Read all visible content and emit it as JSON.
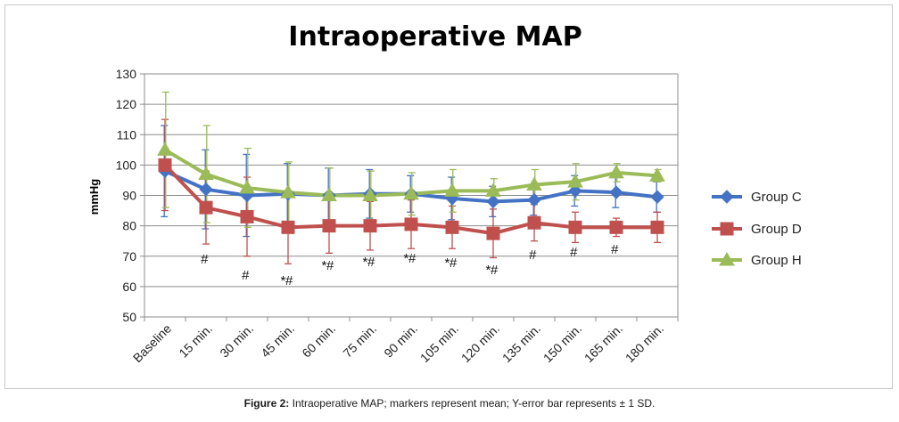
{
  "chart_data": {
    "type": "line",
    "title": "Intraoperative MAP",
    "xlabel": "",
    "ylabel": "mmHg",
    "ylim": [
      50,
      130
    ],
    "yticks": [
      50,
      60,
      70,
      80,
      90,
      100,
      110,
      120,
      130
    ],
    "grid": true,
    "legend_position": "right",
    "categories": [
      "Baseline",
      "15 min.",
      "30 min.",
      "45 min.",
      "60 min.",
      "75 min.",
      "90 min.",
      "105 min.",
      "120 min.",
      "135 min.",
      "150 min.",
      "165 min.",
      "180 min."
    ],
    "series": [
      {
        "name": "Group C",
        "color": "#4472c4",
        "marker": "diamond",
        "values": [
          98,
          92,
          90,
          90.5,
          90,
          90.5,
          90.5,
          89,
          88,
          88.5,
          91.5,
          91,
          89.5
        ],
        "sd": [
          15,
          13,
          13.5,
          10,
          9,
          8,
          6,
          7,
          5,
          5,
          5,
          5,
          5
        ]
      },
      {
        "name": "Group D",
        "color": "#c0504d",
        "marker": "square",
        "values": [
          100,
          86,
          83,
          79.5,
          80,
          80,
          80.5,
          79.5,
          77.5,
          81,
          79.5,
          79.5,
          79.5
        ],
        "sd": [
          15,
          12,
          13,
          12,
          9,
          8,
          8,
          7,
          8,
          6,
          5,
          3,
          5
        ]
      },
      {
        "name": "Group H",
        "color": "#9bbb59",
        "marker": "triangle",
        "values": [
          105,
          97,
          92.5,
          91,
          90,
          90,
          90.5,
          91.5,
          91.5,
          93.5,
          94.5,
          97.5,
          96.5
        ],
        "sd": [
          19,
          16,
          13,
          10,
          9,
          8,
          7,
          7,
          4,
          5,
          6,
          3,
          2
        ]
      }
    ],
    "annotations": [
      "",
      "#",
      "#",
      "*#",
      "*#",
      "*#",
      "*#",
      "*#",
      "*#",
      "#",
      "#",
      "#",
      ""
    ]
  },
  "caption": {
    "label": "Figure 2:",
    "text": " Intraoperative MAP; markers represent mean; Y-error bar represents ± 1 SD."
  }
}
